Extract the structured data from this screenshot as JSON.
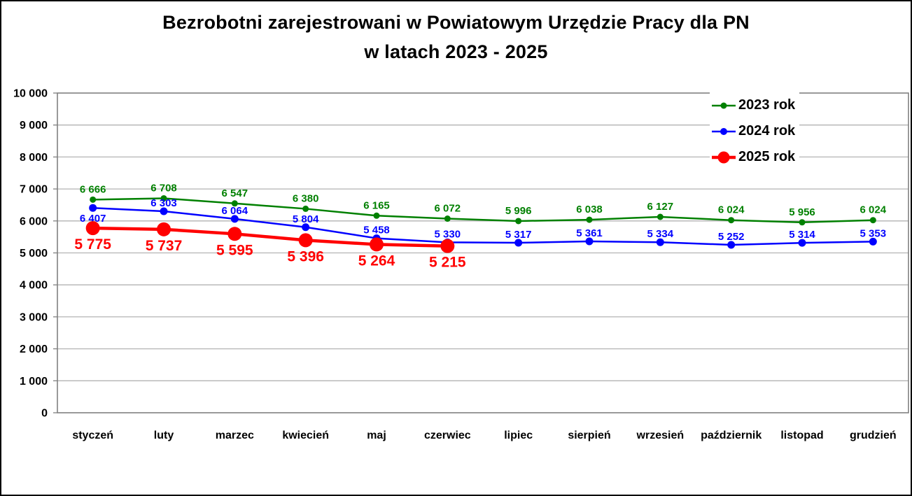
{
  "title": {
    "line1": "Bezrobotni zarejestrowani w Powiatowym Urzędzie Pracy dla PN",
    "line2": "w latach 2023 - 2025"
  },
  "chart_data": {
    "type": "line",
    "title": "Bezrobotni zarejestrowani w Powiatowym Urzędzie Pracy dla PN w latach 2023 - 2025",
    "categories": [
      "styczeń",
      "luty",
      "marzec",
      "kwiecień",
      "maj",
      "czerwiec",
      "lipiec",
      "sierpień",
      "wrzesień",
      "październik",
      "listopad",
      "grudzień"
    ],
    "series": [
      {
        "name": "2023 rok",
        "color": "#008000",
        "label_position": "above",
        "values": [
          6666,
          6708,
          6547,
          6380,
          6165,
          6072,
          5996,
          6038,
          6127,
          6024,
          5956,
          6024
        ]
      },
      {
        "name": "2024 rok",
        "color": "#0000FF",
        "label_position": "above",
        "label_position_overrides": {
          "0": "below"
        },
        "values": [
          6407,
          6303,
          6064,
          5804,
          5458,
          5330,
          5317,
          5361,
          5334,
          5252,
          5314,
          5353
        ]
      },
      {
        "name": "2025 rok",
        "color": "#FF0000",
        "label_position": "below",
        "values": [
          5775,
          5737,
          5595,
          5396,
          5264,
          5215
        ]
      }
    ],
    "ylim": [
      0,
      10000
    ],
    "ytick_step": 1000,
    "ytick_labels": [
      "0",
      "1 000",
      "2 000",
      "3 000",
      "4 000",
      "5 000",
      "6 000",
      "7 000",
      "8 000",
      "9 000",
      "10 000"
    ],
    "thousands_separator": " ",
    "grid": true,
    "legend_position": "top-right",
    "axis_color": "#808080",
    "grid_color": "#B3B3B3",
    "text_color": "#000000"
  }
}
